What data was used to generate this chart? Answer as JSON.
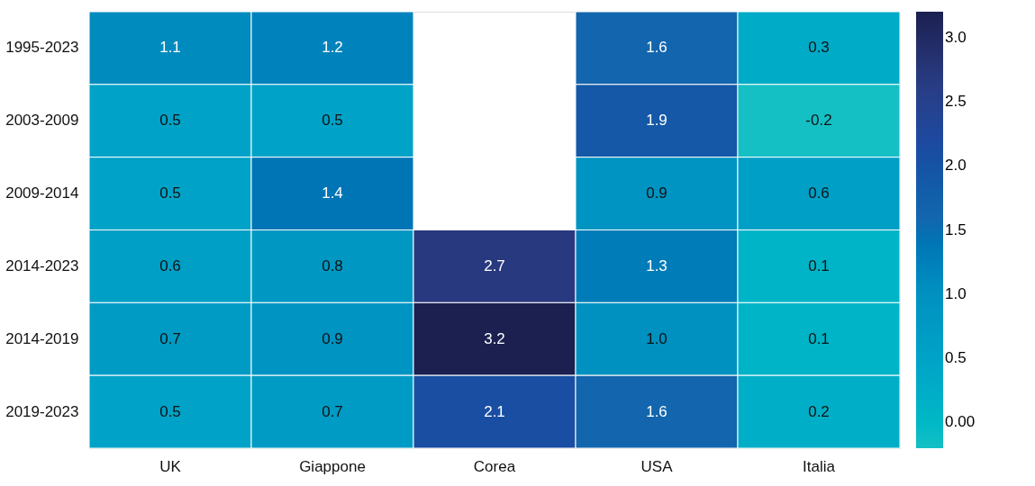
{
  "chart_data": {
    "type": "heatmap",
    "categories": [
      "UK",
      "Giappone",
      "Corea",
      "USA",
      "Italia"
    ],
    "y_categories": [
      "1995-2023",
      "2003-2009",
      "2009-2014",
      "2014-2023",
      "2014-2019",
      "2019-2023"
    ],
    "cells": [
      [
        1.1,
        1.2,
        null,
        1.6,
        0.3
      ],
      [
        0.5,
        0.5,
        null,
        1.9,
        -0.2
      ],
      [
        0.5,
        1.4,
        null,
        0.9,
        0.6
      ],
      [
        0.6,
        0.8,
        2.7,
        1.3,
        0.1
      ],
      [
        0.7,
        0.9,
        3.2,
        1.0,
        0.1
      ],
      [
        0.5,
        0.7,
        2.1,
        1.6,
        0.2
      ]
    ],
    "cell_labels": [
      [
        "1.1",
        "1.2",
        null,
        "1.6",
        "0.3"
      ],
      [
        "0.5",
        "0.5",
        null,
        "1.9",
        "-0.2"
      ],
      [
        "0.5",
        "1.4",
        null,
        "0.9",
        "0.6"
      ],
      [
        "0.6",
        "0.8",
        "2.7",
        "1.3",
        "0.1"
      ],
      [
        "0.7",
        "0.9",
        "3.2",
        "1.0",
        "0.1"
      ],
      [
        "0.5",
        "0.7",
        "2.1",
        "1.6",
        "0.2"
      ]
    ],
    "clim": [
      -0.2,
      3.2
    ],
    "cticks": [
      {
        "value": 0,
        "label": "0.00"
      },
      0.5,
      {
        "value": 1,
        "label": "1.0"
      },
      1.5,
      {
        "value": 2,
        "label": "2.0"
      },
      2.5,
      {
        "value": 3,
        "label": "3.0"
      }
    ]
  }
}
